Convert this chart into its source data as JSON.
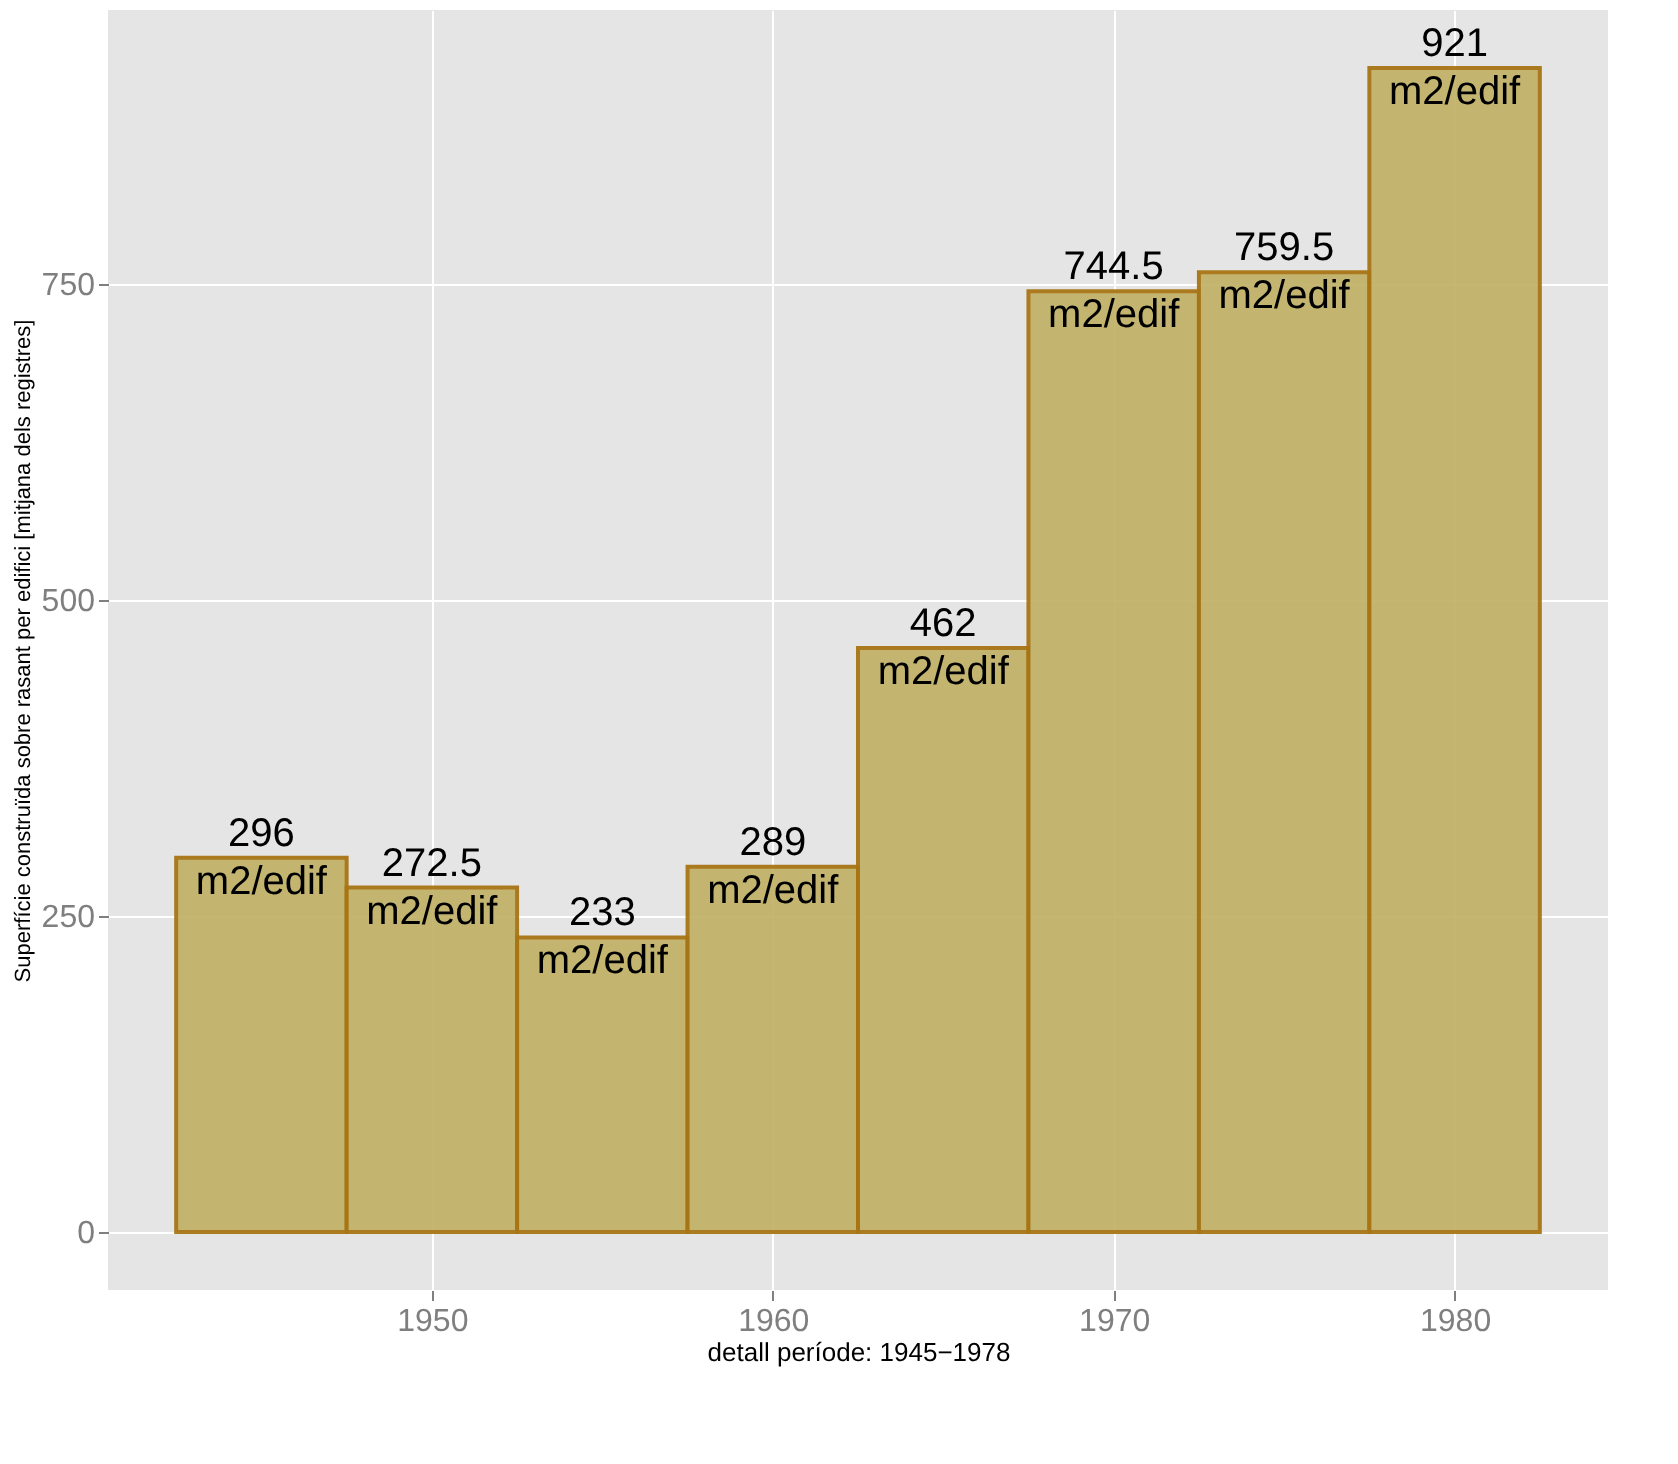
{
  "chart_data": {
    "type": "histogram",
    "bins": [
      1942.5,
      1947.5,
      1952.5,
      1957.5,
      1962.5,
      1967.5,
      1972.5,
      1977.5,
      1982.5
    ],
    "values": [
      296,
      272.5,
      233,
      289,
      462,
      744.5,
      759.5,
      921
    ],
    "value_labels": [
      "296\nm2/edif",
      "272.5\nm2/edif",
      "233\nm2/edif",
      "289\nm2/edif",
      "462\nm2/edif",
      "744.5\nm2/edif",
      "759.5\nm2/edif",
      "921\nm2/edif"
    ],
    "color": "#c2b36a",
    "xlabel": "detall període: 1945−1978",
    "ylabel": "Superfície construïda sobre rasant per edifici [mitjana dels registres]",
    "xlim": [
      1940.5,
      1984.5
    ],
    "xticks": [
      1950,
      1960,
      1970,
      1980
    ],
    "ylim": [
      -46,
      967
    ],
    "yticks": [
      0,
      250,
      500,
      750
    ],
    "grid": true
  }
}
